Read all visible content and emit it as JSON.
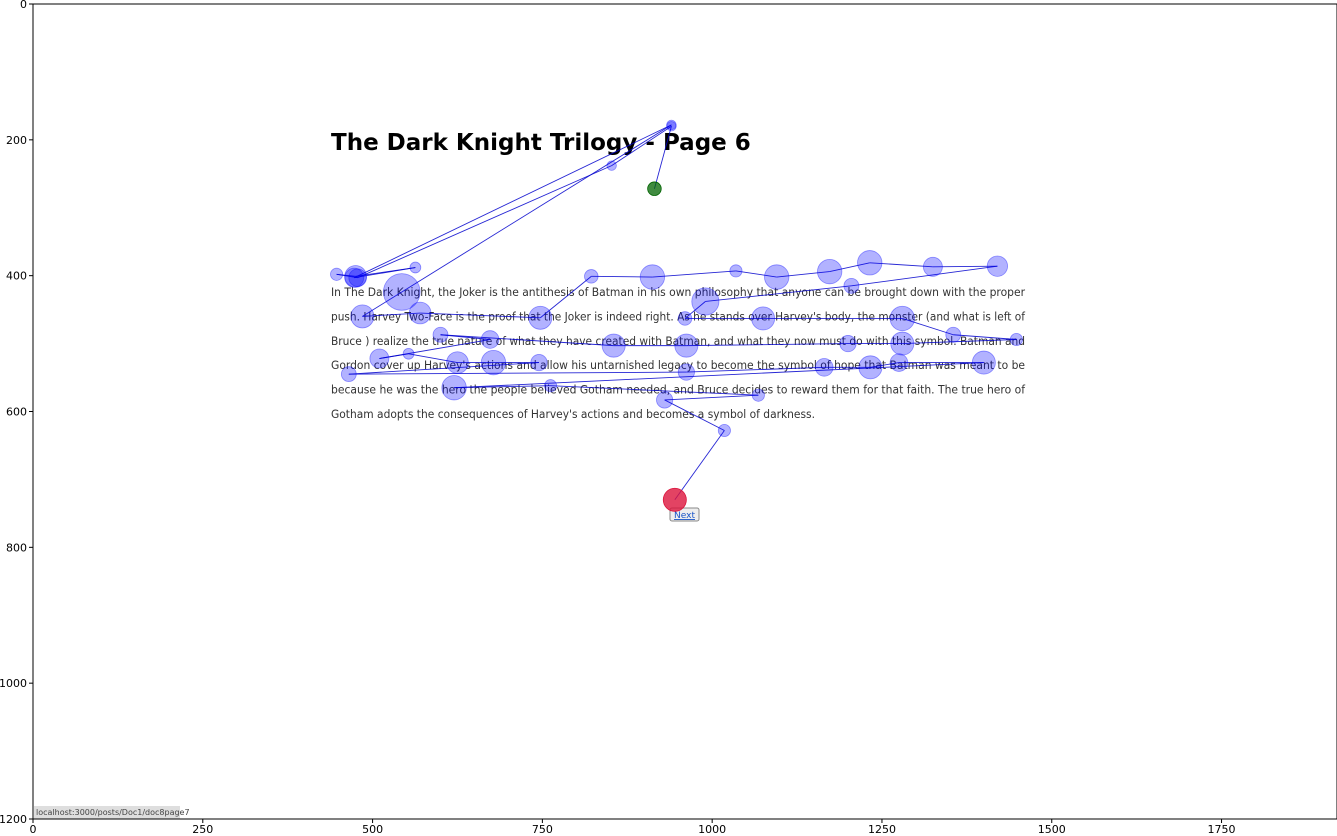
{
  "page": {
    "title": "The Dark Knight Trilogy - Page 6",
    "body_lines": [
      "In The Dark Knight, the Joker is the antithesis of Batman in his own philosophy that anyone can be brought down with the proper",
      "push. Harvey Two-Face is the proof that the Joker is indeed right. As he stands over Harvey's body, the monster (and what is left of",
      "Bruce ) realize the true nature of what they have created with Batman, and what they now must do with this symbol. Batman and",
      "Gordon cover up Harvey's actions and allow his untarnished legacy to become the symbol of hope that Batman was meant to be",
      "because he was the hero the people believed Gotham needed, and Bruce decides to reward them for that faith. The true hero of",
      "Gotham adopts the consequences of Harvey's actions and becomes a symbol of darkness."
    ],
    "next_label": "Next",
    "status_url": "localhost:3000/posts/Doc1/doc8page7"
  },
  "chart_data": {
    "type": "scatter",
    "title": "",
    "xlabel": "",
    "ylabel": "",
    "xlim": [
      0,
      1920
    ],
    "ylim": [
      1200,
      0
    ],
    "xticks": [
      0,
      250,
      500,
      750,
      1000,
      1250,
      1500,
      1750
    ],
    "yticks": [
      0,
      200,
      400,
      600,
      800,
      1000,
      1200
    ],
    "grid": false,
    "colors": {
      "fixation": "#0000ff",
      "start": "#006400",
      "end": "#dc143c",
      "path": "#0000cc"
    },
    "start_point": {
      "x": 915,
      "y": 272,
      "r": 10
    },
    "end_point": {
      "x": 945,
      "y": 730,
      "r": 17
    },
    "fixations": [
      {
        "x": 940,
        "y": 180,
        "r": 7
      },
      {
        "x": 852,
        "y": 238,
        "r": 7
      },
      {
        "x": 478,
        "y": 403,
        "r": 13
      },
      {
        "x": 447,
        "y": 398,
        "r": 9
      },
      {
        "x": 475,
        "y": 401,
        "r": 16
      },
      {
        "x": 563,
        "y": 388,
        "r": 8
      },
      {
        "x": 473,
        "y": 403,
        "r": 14
      },
      {
        "x": 940,
        "y": 178,
        "r": 7
      },
      {
        "x": 543,
        "y": 424,
        "r": 27
      },
      {
        "x": 485,
        "y": 460,
        "r": 17
      },
      {
        "x": 570,
        "y": 455,
        "r": 16
      },
      {
        "x": 747,
        "y": 462,
        "r": 17
      },
      {
        "x": 822,
        "y": 401,
        "r": 10
      },
      {
        "x": 912,
        "y": 402,
        "r": 18
      },
      {
        "x": 1035,
        "y": 393,
        "r": 9
      },
      {
        "x": 1095,
        "y": 402,
        "r": 18
      },
      {
        "x": 1173,
        "y": 394,
        "r": 18
      },
      {
        "x": 1232,
        "y": 381,
        "r": 18
      },
      {
        "x": 1325,
        "y": 387,
        "r": 14
      },
      {
        "x": 1420,
        "y": 386,
        "r": 15
      },
      {
        "x": 1205,
        "y": 415,
        "r": 11
      },
      {
        "x": 990,
        "y": 438,
        "r": 20
      },
      {
        "x": 960,
        "y": 463,
        "r": 10
      },
      {
        "x": 1075,
        "y": 463,
        "r": 17
      },
      {
        "x": 1280,
        "y": 463,
        "r": 18
      },
      {
        "x": 1355,
        "y": 487,
        "r": 11
      },
      {
        "x": 1448,
        "y": 494,
        "r": 9
      },
      {
        "x": 1280,
        "y": 500,
        "r": 17
      },
      {
        "x": 1200,
        "y": 500,
        "r": 12
      },
      {
        "x": 962,
        "y": 503,
        "r": 17
      },
      {
        "x": 855,
        "y": 503,
        "r": 17
      },
      {
        "x": 600,
        "y": 487,
        "r": 11
      },
      {
        "x": 673,
        "y": 494,
        "r": 13
      },
      {
        "x": 510,
        "y": 522,
        "r": 14
      },
      {
        "x": 553,
        "y": 515,
        "r": 8
      },
      {
        "x": 625,
        "y": 528,
        "r": 16
      },
      {
        "x": 678,
        "y": 528,
        "r": 18
      },
      {
        "x": 745,
        "y": 528,
        "r": 12
      },
      {
        "x": 465,
        "y": 545,
        "r": 11
      },
      {
        "x": 962,
        "y": 542,
        "r": 12
      },
      {
        "x": 1165,
        "y": 535,
        "r": 13
      },
      {
        "x": 1233,
        "y": 535,
        "r": 17
      },
      {
        "x": 1275,
        "y": 528,
        "r": 13
      },
      {
        "x": 1400,
        "y": 528,
        "r": 17
      },
      {
        "x": 620,
        "y": 565,
        "r": 18
      },
      {
        "x": 762,
        "y": 562,
        "r": 9
      },
      {
        "x": 1068,
        "y": 576,
        "r": 9
      },
      {
        "x": 930,
        "y": 583,
        "r": 12
      },
      {
        "x": 1018,
        "y": 628,
        "r": 9
      }
    ]
  }
}
